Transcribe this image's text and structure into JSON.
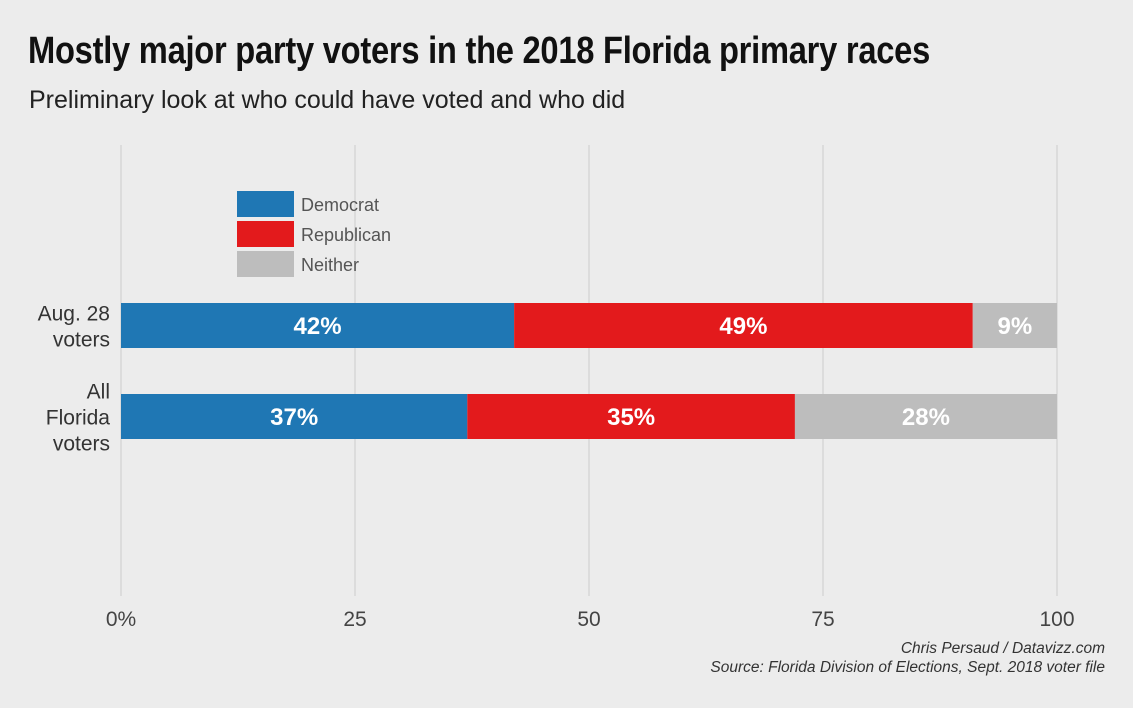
{
  "title": "Mostly major party voters in the 2018 Florida primary races",
  "subtitle": "Preliminary look at who could have voted and who did",
  "credits": {
    "author": "Chris Persaud / Datavizz.com",
    "source": "Source: Florida Division of Elections, Sept. 2018 voter file"
  },
  "chart_data": {
    "type": "bar",
    "orientation": "horizontal",
    "stacked": true,
    "categories": [
      "Aug. 28 voters",
      "All Florida voters"
    ],
    "category_lines": [
      [
        "Aug. 28",
        "voters"
      ],
      [
        "All",
        "Florida",
        "voters"
      ]
    ],
    "series": [
      {
        "name": "Democrat",
        "color": "#1f77b4",
        "values": [
          42,
          37
        ],
        "labels": [
          "42%",
          "37%"
        ]
      },
      {
        "name": "Republican",
        "color": "#e31a1c",
        "values": [
          49,
          35
        ],
        "labels": [
          "49%",
          "35%"
        ]
      },
      {
        "name": "Neither",
        "color": "#bdbdbd",
        "values": [
          9,
          28
        ],
        "labels": [
          "9%",
          "28%"
        ]
      }
    ],
    "xlim": [
      0,
      100
    ],
    "xticks": [
      0,
      25,
      50,
      75,
      100
    ],
    "xtick_labels": [
      "0%",
      "25",
      "50",
      "75",
      "100"
    ],
    "grid": true,
    "legend_position": "top-left"
  }
}
